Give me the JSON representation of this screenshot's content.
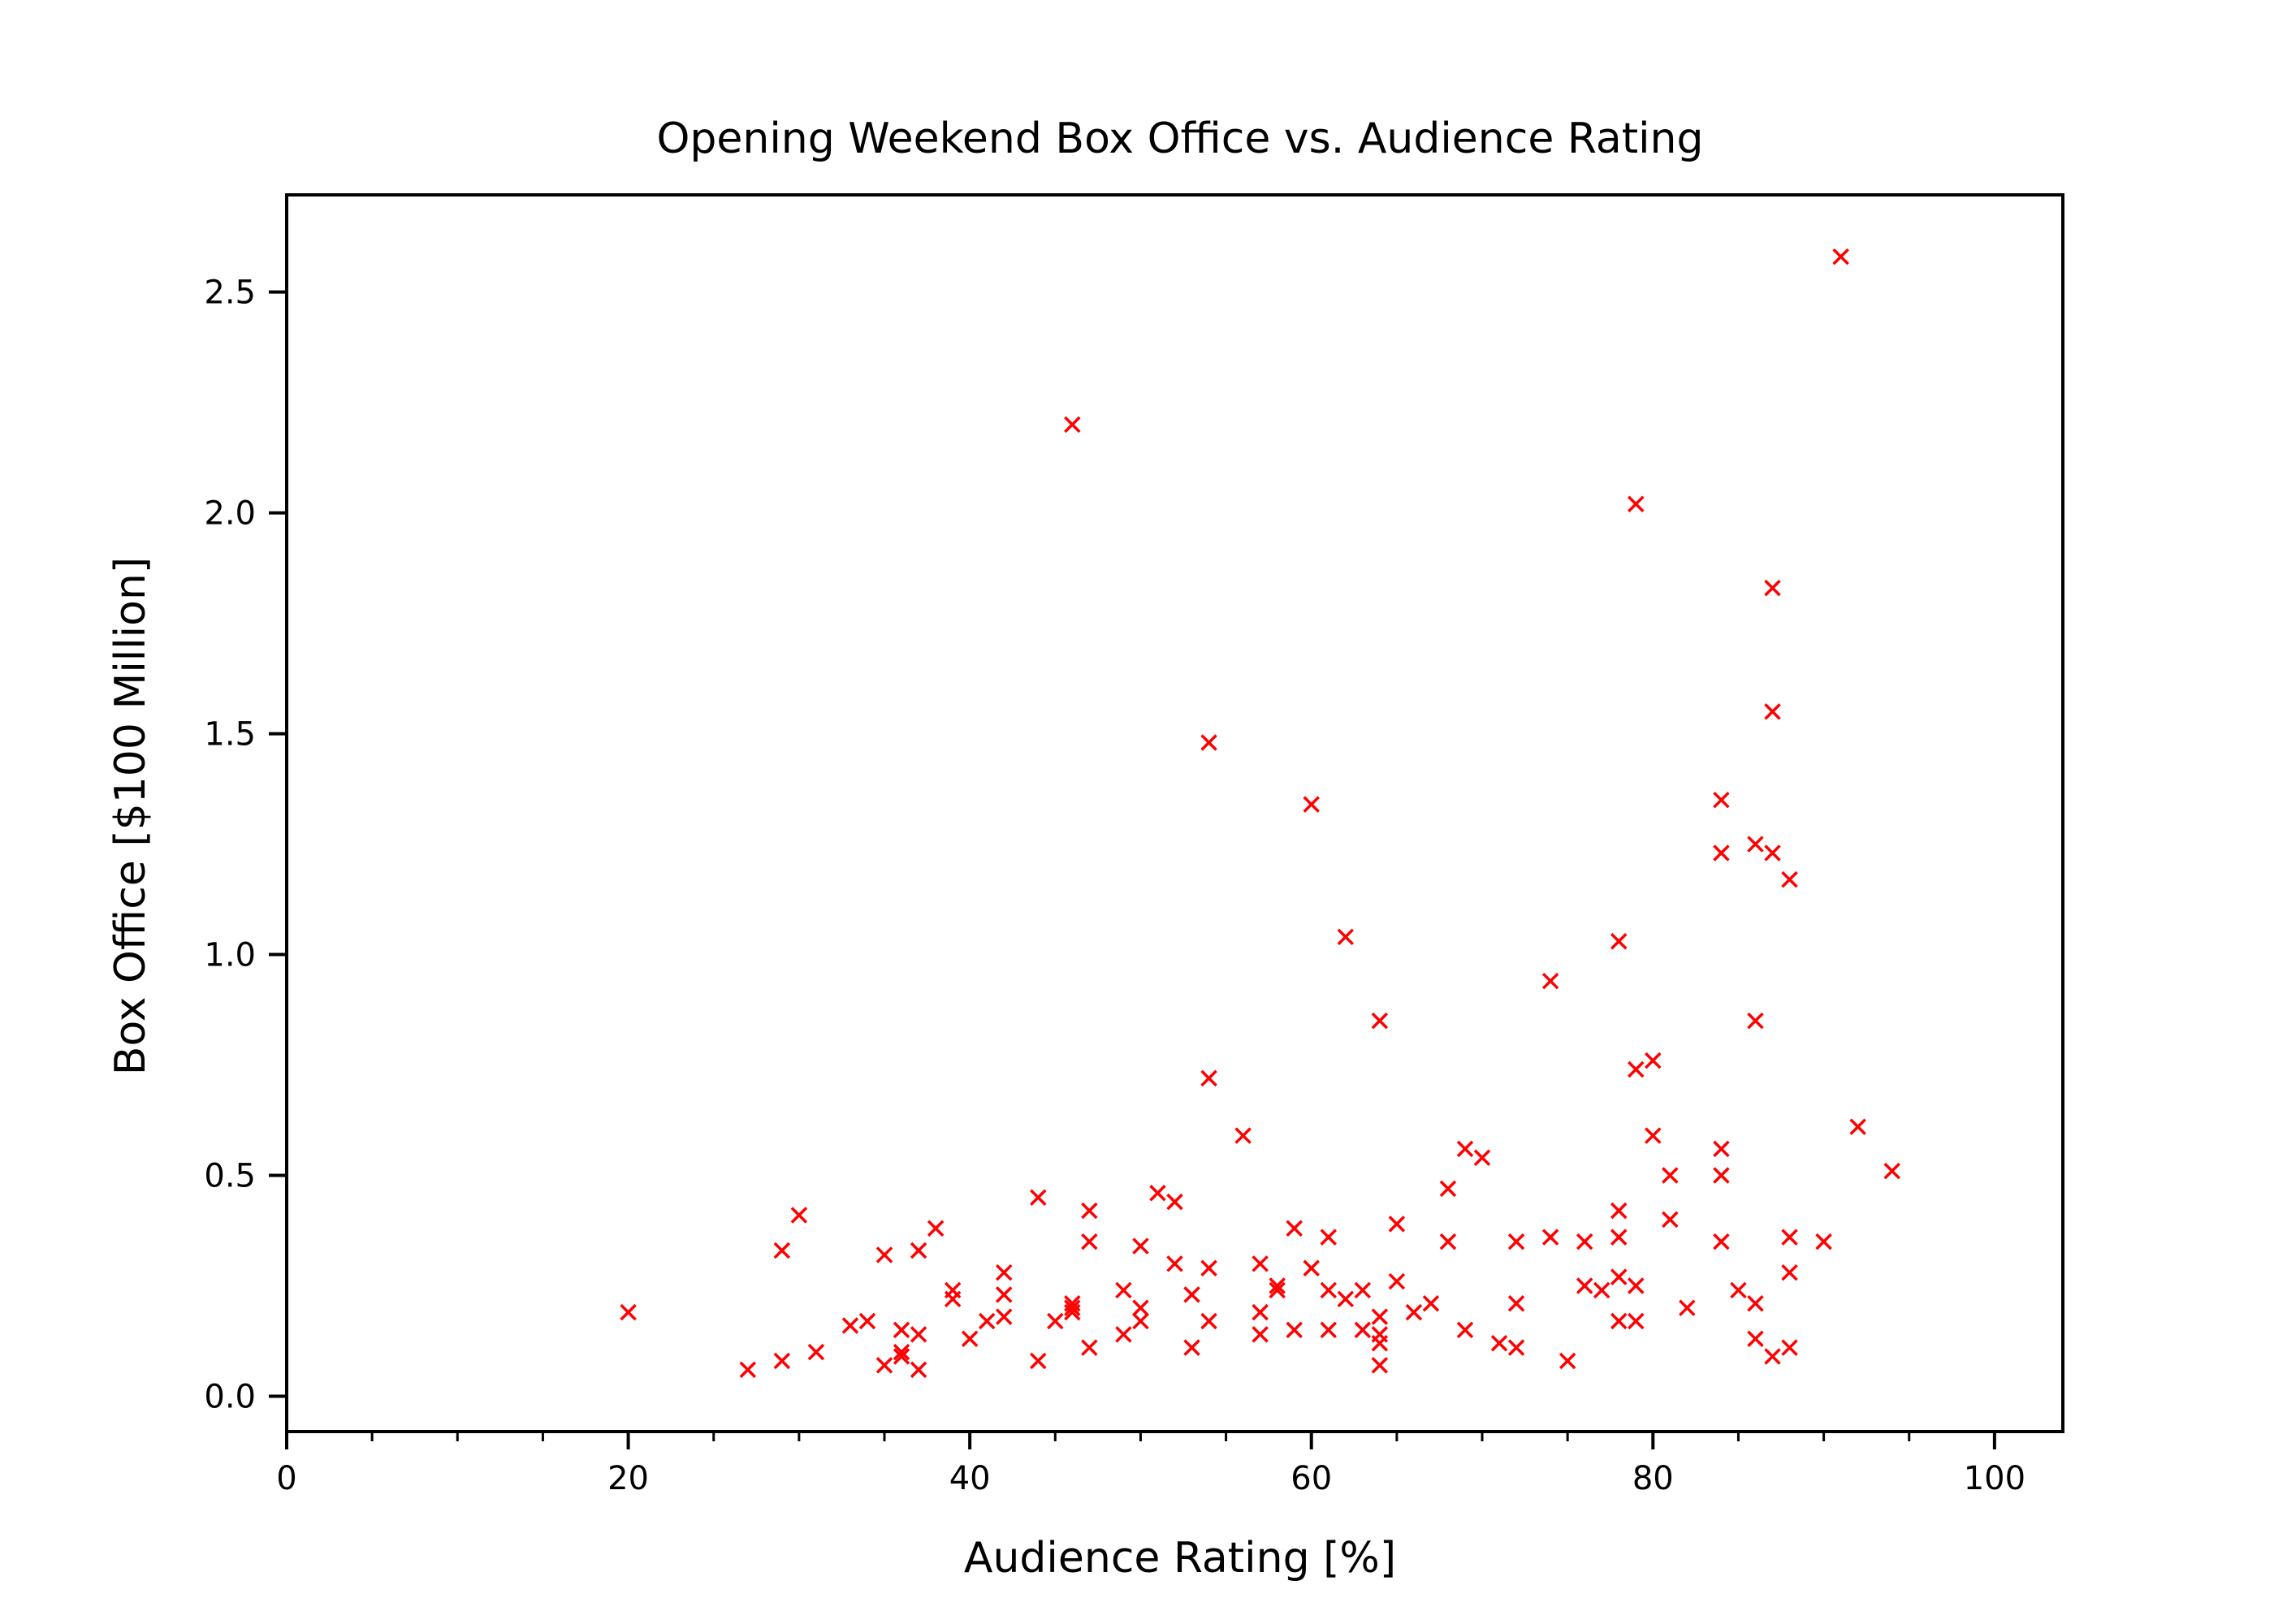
{
  "chart_data": {
    "type": "scatter",
    "title": "Opening Weekend Box Office vs. Audience Rating",
    "xlabel": "Audience Rating [%]",
    "ylabel": "Box Office [$100 Million]",
    "xlim": [
      0,
      104
    ],
    "ylim": [
      -0.08,
      2.72
    ],
    "x_ticks": [
      0,
      20,
      40,
      60,
      80,
      100
    ],
    "x_tick_labels": [
      "0",
      "20",
      "40",
      "60",
      "80",
      "100"
    ],
    "x_minor_tick_step": 5,
    "y_ticks": [
      0.0,
      0.5,
      1.0,
      1.5,
      2.0,
      2.5
    ],
    "y_tick_labels": [
      "0.0",
      "0.5",
      "1.0",
      "1.5",
      "2.0",
      "2.5"
    ],
    "grid": false,
    "marker": "x",
    "color": "#ff0000",
    "series": [
      {
        "points": [
          [
            20,
            0.19
          ],
          [
            27,
            0.06
          ],
          [
            29,
            0.33
          ],
          [
            29,
            0.08
          ],
          [
            30,
            0.41
          ],
          [
            31,
            0.1
          ],
          [
            33,
            0.16
          ],
          [
            34,
            0.17
          ],
          [
            35,
            0.32
          ],
          [
            35,
            0.07
          ],
          [
            36,
            0.15
          ],
          [
            36,
            0.1
          ],
          [
            36,
            0.09
          ],
          [
            37,
            0.33
          ],
          [
            37,
            0.14
          ],
          [
            37,
            0.06
          ],
          [
            38,
            0.38
          ],
          [
            39,
            0.24
          ],
          [
            39,
            0.22
          ],
          [
            40,
            0.13
          ],
          [
            41,
            0.17
          ],
          [
            42,
            0.28
          ],
          [
            42,
            0.23
          ],
          [
            42,
            0.18
          ],
          [
            44,
            0.45
          ],
          [
            44,
            0.08
          ],
          [
            45,
            0.17
          ],
          [
            46,
            2.2
          ],
          [
            46,
            0.21
          ],
          [
            46,
            0.2
          ],
          [
            46,
            0.19
          ],
          [
            47,
            0.42
          ],
          [
            47,
            0.35
          ],
          [
            47,
            0.11
          ],
          [
            49,
            0.24
          ],
          [
            49,
            0.14
          ],
          [
            50,
            0.34
          ],
          [
            50,
            0.2
          ],
          [
            50,
            0.17
          ],
          [
            51,
            0.46
          ],
          [
            52,
            0.44
          ],
          [
            52,
            0.3
          ],
          [
            53,
            0.23
          ],
          [
            53,
            0.11
          ],
          [
            54,
            1.48
          ],
          [
            54,
            0.72
          ],
          [
            54,
            0.29
          ],
          [
            54,
            0.17
          ],
          [
            56,
            0.59
          ],
          [
            57,
            0.3
          ],
          [
            57,
            0.19
          ],
          [
            57,
            0.14
          ],
          [
            58,
            0.25
          ],
          [
            58,
            0.24
          ],
          [
            59,
            0.38
          ],
          [
            59,
            0.15
          ],
          [
            60,
            1.34
          ],
          [
            60,
            0.29
          ],
          [
            61,
            0.36
          ],
          [
            61,
            0.24
          ],
          [
            61,
            0.15
          ],
          [
            62,
            1.04
          ],
          [
            62,
            0.22
          ],
          [
            63,
            0.24
          ],
          [
            63,
            0.15
          ],
          [
            64,
            0.85
          ],
          [
            64,
            0.18
          ],
          [
            64,
            0.14
          ],
          [
            64,
            0.12
          ],
          [
            64,
            0.07
          ],
          [
            65,
            0.39
          ],
          [
            65,
            0.26
          ],
          [
            66,
            0.19
          ],
          [
            67,
            0.21
          ],
          [
            68,
            0.47
          ],
          [
            68,
            0.35
          ],
          [
            69,
            0.56
          ],
          [
            69,
            0.15
          ],
          [
            70,
            0.54
          ],
          [
            71,
            0.12
          ],
          [
            72,
            0.35
          ],
          [
            72,
            0.21
          ],
          [
            72,
            0.11
          ],
          [
            74,
            0.94
          ],
          [
            74,
            0.36
          ],
          [
            75,
            0.08
          ],
          [
            76,
            0.35
          ],
          [
            76,
            0.25
          ],
          [
            77,
            0.24
          ],
          [
            78,
            1.03
          ],
          [
            78,
            0.42
          ],
          [
            78,
            0.36
          ],
          [
            78,
            0.27
          ],
          [
            78,
            0.17
          ],
          [
            79,
            2.02
          ],
          [
            79,
            0.74
          ],
          [
            79,
            0.25
          ],
          [
            79,
            0.17
          ],
          [
            80,
            0.76
          ],
          [
            80,
            0.59
          ],
          [
            81,
            0.5
          ],
          [
            81,
            0.4
          ],
          [
            82,
            0.2
          ],
          [
            84,
            1.35
          ],
          [
            84,
            1.23
          ],
          [
            84,
            0.56
          ],
          [
            84,
            0.5
          ],
          [
            84,
            0.35
          ],
          [
            85,
            0.24
          ],
          [
            86,
            1.25
          ],
          [
            86,
            0.85
          ],
          [
            86,
            0.21
          ],
          [
            86,
            0.13
          ],
          [
            87,
            1.83
          ],
          [
            87,
            1.55
          ],
          [
            87,
            1.23
          ],
          [
            87,
            0.09
          ],
          [
            88,
            1.17
          ],
          [
            88,
            0.36
          ],
          [
            88,
            0.28
          ],
          [
            88,
            0.11
          ],
          [
            90,
            0.35
          ],
          [
            91,
            2.58
          ],
          [
            92,
            0.61
          ],
          [
            94,
            0.51
          ]
        ]
      }
    ]
  }
}
